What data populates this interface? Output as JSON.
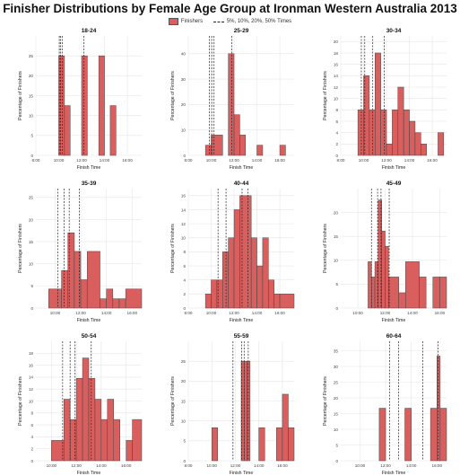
{
  "title": "Finisher Distributions by Female Age Group at Ironman Western Australia 2013",
  "legend": {
    "bars_label": "Finishers",
    "lines_label": "5%, 10%, 20%, 50% Times"
  },
  "colors": {
    "bar_fill": "#d95f5f",
    "bar_stroke": "#444444",
    "grid": "#e6e6e6",
    "quantile_line": "#222222"
  },
  "chart_data": [
    {
      "type": "bar",
      "title": "18-24",
      "xlabel": "Finish Time",
      "ylabel": "Percentage of Finishers",
      "xticks": [
        "8:00",
        "10:00",
        "12:00",
        "14:00",
        "16:00"
      ],
      "xlim": [
        8,
        17.25
      ],
      "ylim": [
        0,
        30
      ],
      "yticks": [
        0,
        5,
        10,
        15,
        20,
        25
      ],
      "bins": [
        [
          10,
          10.5,
          25
        ],
        [
          10.5,
          11,
          12.5
        ],
        [
          12,
          12.5,
          25
        ],
        [
          13.5,
          14,
          25
        ],
        [
          14.5,
          15,
          12.5
        ]
      ],
      "quantile_lines": [
        10.05,
        10.15,
        10.3,
        12.2
      ]
    },
    {
      "type": "bar",
      "title": "25-29",
      "xlabel": "Finish Time",
      "ylabel": "Percentage of Finishers",
      "xticks": [
        "8:00",
        "10:00",
        "12:00",
        "14:00",
        "16:00"
      ],
      "xlim": [
        8,
        17.25
      ],
      "ylim": [
        0,
        47
      ],
      "yticks": [
        0,
        10,
        20,
        30,
        40
      ],
      "bins": [
        [
          9.5,
          10,
          4
        ],
        [
          10,
          11,
          8
        ],
        [
          11.5,
          12,
          40
        ],
        [
          12,
          12.5,
          16
        ],
        [
          12.5,
          13,
          8
        ],
        [
          14,
          14.5,
          4
        ],
        [
          16,
          16.5,
          4
        ]
      ],
      "quantile_lines": [
        9.85,
        10.05,
        10.25,
        11.8
      ]
    },
    {
      "type": "bar",
      "title": "30-34",
      "xlabel": "Finish Time",
      "ylabel": "Percentage of Finishers",
      "xticks": [
        "8:00",
        "10:00",
        "12:00",
        "14:00",
        "16:00"
      ],
      "xlim": [
        8,
        17.25
      ],
      "ylim": [
        0,
        21
      ],
      "yticks": [
        0,
        2,
        4,
        6,
        8,
        10,
        12,
        14,
        16,
        18,
        20
      ],
      "bins": [
        [
          9.5,
          10,
          8
        ],
        [
          10,
          10.5,
          14
        ],
        [
          10.5,
          11,
          8
        ],
        [
          11,
          11.5,
          18
        ],
        [
          11.5,
          12,
          8
        ],
        [
          12,
          12.5,
          2
        ],
        [
          12.5,
          13,
          8
        ],
        [
          13,
          13.5,
          12
        ],
        [
          13.5,
          14,
          8
        ],
        [
          14,
          14.5,
          6
        ],
        [
          14.5,
          15,
          4
        ],
        [
          15,
          15.5,
          2
        ],
        [
          16.5,
          17,
          4
        ]
      ],
      "quantile_lines": [
        9.8,
        10.1,
        10.8,
        11.8
      ]
    },
    {
      "type": "bar",
      "title": "35-39",
      "xlabel": "Finish Time",
      "ylabel": "Percentage of Finishers",
      "xticks": [
        "10:00",
        "12:00",
        "14:00",
        "16:00"
      ],
      "xlim": [
        8.5,
        16.75
      ],
      "ylim": [
        0,
        27
      ],
      "yticks": [
        0,
        5,
        10,
        15,
        20,
        25
      ],
      "bins": [
        [
          9.5,
          10.5,
          4.3
        ],
        [
          10.5,
          11,
          8.5
        ],
        [
          11,
          11.5,
          17
        ],
        [
          11.5,
          12,
          12.8
        ],
        [
          12,
          12.5,
          6.4
        ],
        [
          12.5,
          13.5,
          12.8
        ],
        [
          13.5,
          14,
          2.1
        ],
        [
          14,
          14.5,
          4.3
        ],
        [
          14.5,
          15,
          2.1
        ],
        [
          15,
          15.5,
          2.1
        ],
        [
          15.5,
          16.75,
          4.3
        ]
      ],
      "quantile_lines": [
        10.2,
        10.7,
        11.1,
        11.9
      ]
    },
    {
      "type": "bar",
      "title": "40-44",
      "xlabel": "Finish Time",
      "ylabel": "Percentage of Finishers",
      "xticks": [
        "8:00",
        "10:00",
        "12:00",
        "14:00",
        "16:00"
      ],
      "xlim": [
        8,
        17.25
      ],
      "ylim": [
        0,
        17
      ],
      "yticks": [
        0,
        2,
        4,
        6,
        8,
        10,
        12,
        14,
        16
      ],
      "bins": [
        [
          9.5,
          10,
          2
        ],
        [
          10,
          10.5,
          4
        ],
        [
          10.5,
          11,
          4
        ],
        [
          11,
          11.5,
          8
        ],
        [
          11.5,
          12,
          10
        ],
        [
          12,
          12.5,
          14
        ],
        [
          12.5,
          13.5,
          16
        ],
        [
          13.5,
          14,
          10
        ],
        [
          14,
          14.5,
          6
        ],
        [
          14.5,
          15,
          10
        ],
        [
          15,
          15.5,
          4
        ],
        [
          15.5,
          16,
          2
        ],
        [
          16,
          17.25,
          2
        ]
      ],
      "quantile_lines": [
        10.6,
        11.3,
        12.7,
        13.2
      ]
    },
    {
      "type": "bar",
      "title": "45-49",
      "xlabel": "Finish Time",
      "ylabel": "Percentage of Finishers",
      "xticks": [
        "10:00",
        "12:00",
        "14:00",
        "16:00"
      ],
      "xlim": [
        8.75,
        16.5
      ],
      "ylim": [
        0,
        25
      ],
      "yticks": [
        0,
        5,
        10,
        15,
        20
      ],
      "bins": [
        [
          10.75,
          11,
          9.7
        ],
        [
          11,
          11.25,
          6.5
        ],
        [
          11.25,
          11.5,
          9.7
        ],
        [
          11.5,
          11.75,
          22.6
        ],
        [
          11.75,
          12,
          16.1
        ],
        [
          12,
          12.25,
          12.9
        ],
        [
          12.25,
          13,
          6.5
        ],
        [
          13,
          13.5,
          3.2
        ],
        [
          13.5,
          14.5,
          9.7
        ],
        [
          14.5,
          15,
          6.5
        ],
        [
          15.5,
          16,
          6.5
        ],
        [
          16,
          16.5,
          6.5
        ]
      ],
      "quantile_lines": [
        11.0,
        11.45,
        11.7,
        12.3
      ]
    },
    {
      "type": "bar",
      "title": "50-54",
      "xlabel": "Finish Time",
      "ylabel": "Percentage of Finishers",
      "xticks": [
        "10:00",
        "12:00",
        "14:00",
        "16:00"
      ],
      "xlim": [
        8.75,
        17.25
      ],
      "ylim": [
        0,
        20
      ],
      "yticks": [
        0,
        2,
        4,
        6,
        8,
        10,
        12,
        14,
        16,
        18
      ],
      "bins": [
        [
          10,
          11,
          3.4
        ],
        [
          11,
          11.5,
          10.3
        ],
        [
          11.5,
          12,
          6.9
        ],
        [
          12,
          12.5,
          13.8
        ],
        [
          12.5,
          13,
          17.2
        ],
        [
          13,
          13.5,
          13.8
        ],
        [
          13.5,
          14,
          10.3
        ],
        [
          14,
          14.5,
          6.9
        ],
        [
          14.5,
          15,
          10.3
        ],
        [
          15,
          15.5,
          6.9
        ],
        [
          16,
          16.5,
          3.4
        ],
        [
          16.5,
          17.25,
          6.9
        ]
      ],
      "quantile_lines": [
        10.9,
        11.5,
        11.9,
        13.2
      ]
    },
    {
      "type": "bar",
      "title": "55-59",
      "xlabel": "Finish Time",
      "ylabel": "Percentage of Finishers",
      "xticks": [
        "8:00",
        "10:00",
        "12:00",
        "14:00",
        "16:00"
      ],
      "xlim": [
        8,
        17
      ],
      "ylim": [
        0,
        30
      ],
      "yticks": [
        0,
        5,
        10,
        15,
        20,
        25
      ],
      "bins": [
        [
          10,
          10.5,
          8.3
        ],
        [
          12.5,
          12.75,
          25
        ],
        [
          12.75,
          13,
          25
        ],
        [
          13,
          13.25,
          25
        ],
        [
          14,
          14.5,
          8.3
        ],
        [
          15.5,
          16,
          8.3
        ],
        [
          16,
          16.5,
          16.7
        ],
        [
          16.5,
          17,
          8.3
        ]
      ],
      "quantile_lines": [
        11.8,
        12.55,
        12.75,
        13.1
      ]
    },
    {
      "type": "bar",
      "title": "60-64",
      "xlabel": "Finish Time",
      "ylabel": "Percentage of Finishers",
      "xticks": [
        "10:00",
        "12:00",
        "14:00",
        "16:00"
      ],
      "xlim": [
        8.5,
        16.75
      ],
      "ylim": [
        0,
        38
      ],
      "yticks": [
        0,
        5,
        10,
        15,
        20,
        25,
        30,
        35
      ],
      "bins": [
        [
          11.5,
          12,
          16.7
        ],
        [
          13.5,
          14,
          16.7
        ],
        [
          15.5,
          16,
          16.7
        ],
        [
          16,
          16.25,
          33.3
        ],
        [
          16.25,
          16.75,
          16.7
        ]
      ],
      "quantile_lines": [
        12.3,
        13.0,
        14.9,
        16.1
      ]
    }
  ]
}
